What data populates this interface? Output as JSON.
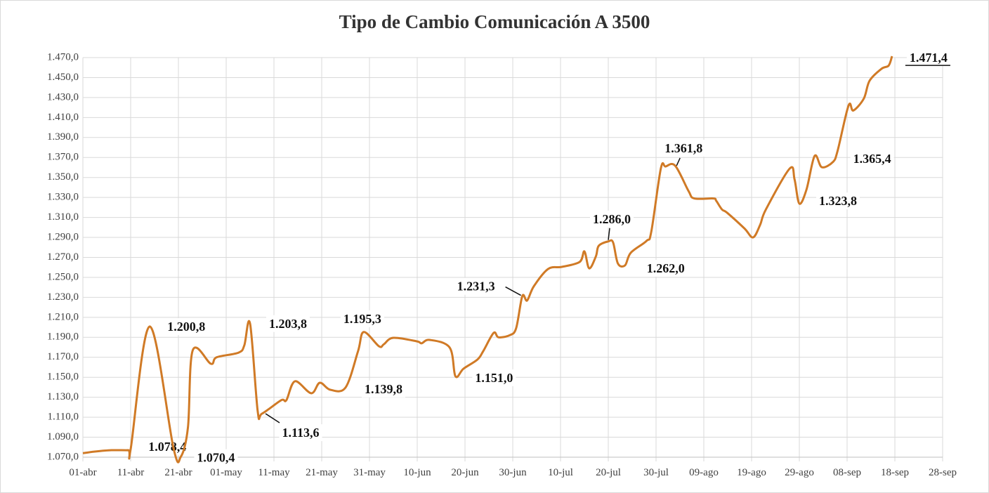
{
  "chart_data": {
    "type": "line",
    "title": "Tipo de Cambio Comunicación A 3500",
    "xlim": [
      0,
      180
    ],
    "xticks": [
      {
        "value": 0,
        "label": "01-abr"
      },
      {
        "value": 10,
        "label": "11-abr"
      },
      {
        "value": 20,
        "label": "21-abr"
      },
      {
        "value": 30,
        "label": "01-may"
      },
      {
        "value": 40,
        "label": "11-may"
      },
      {
        "value": 50,
        "label": "21-may"
      },
      {
        "value": 60,
        "label": "31-may"
      },
      {
        "value": 70,
        "label": "10-jun"
      },
      {
        "value": 80,
        "label": "20-jun"
      },
      {
        "value": 90,
        "label": "30-jun"
      },
      {
        "value": 100,
        "label": "10-jul"
      },
      {
        "value": 110,
        "label": "20-jul"
      },
      {
        "value": 120,
        "label": "30-jul"
      },
      {
        "value": 130,
        "label": "09-ago"
      },
      {
        "value": 140,
        "label": "19-ago"
      },
      {
        "value": 150,
        "label": "29-ago"
      },
      {
        "value": 160,
        "label": "08-sep"
      },
      {
        "value": 170,
        "label": "18-sep"
      },
      {
        "value": 180,
        "label": "28-sep"
      }
    ],
    "ylim": [
      1070,
      1470
    ],
    "yticks": [
      {
        "value": 1070,
        "label": "1.070,0"
      },
      {
        "value": 1090,
        "label": "1.090,0"
      },
      {
        "value": 1110,
        "label": "1.110,0"
      },
      {
        "value": 1130,
        "label": "1.130,0"
      },
      {
        "value": 1150,
        "label": "1.150,0"
      },
      {
        "value": 1170,
        "label": "1.170,0"
      },
      {
        "value": 1190,
        "label": "1.190,0"
      },
      {
        "value": 1210,
        "label": "1.210,0"
      },
      {
        "value": 1230,
        "label": "1.230,0"
      },
      {
        "value": 1250,
        "label": "1.250,0"
      },
      {
        "value": 1270,
        "label": "1.270,0"
      },
      {
        "value": 1290,
        "label": "1.290,0"
      },
      {
        "value": 1310,
        "label": "1.310,0"
      },
      {
        "value": 1330,
        "label": "1.330,0"
      },
      {
        "value": 1350,
        "label": "1.350,0"
      },
      {
        "value": 1370,
        "label": "1.370,0"
      },
      {
        "value": 1390,
        "label": "1.390,0"
      },
      {
        "value": 1410,
        "label": "1.410,0"
      },
      {
        "value": 1430,
        "label": "1.430,0"
      },
      {
        "value": 1450,
        "label": "1.450,0"
      },
      {
        "value": 1470,
        "label": "1.470,0"
      }
    ],
    "grid": true,
    "series": [
      {
        "color": "#d07a26",
        "x": [
          0,
          2.5,
          6,
          9.5,
          10,
          14,
          19,
          20.5,
          22,
          23,
          26.8,
          28,
          32.6,
          33.8,
          35,
          36.6,
          37.5,
          41.5,
          42.6,
          44.4,
          47.8,
          49.6,
          51.8,
          55,
          57.6,
          58.8,
          62,
          63,
          65,
          69.9,
          70.9,
          72.6,
          76.8,
          78,
          79.7,
          82.6,
          83.8,
          86,
          87,
          89.3,
          90.7,
          92,
          93,
          94.4,
          97.4,
          100.3,
          104,
          105,
          106,
          107.4,
          108,
          110,
          111,
          112,
          113.5,
          114.7,
          118,
          119,
          121,
          122,
          124,
          126.8,
          128,
          132,
          132.6,
          133.8,
          134.9,
          138.5,
          140.3,
          141.8,
          143,
          148,
          149,
          150,
          151.5,
          153.2,
          154.7,
          157,
          158,
          160.3,
          161.3,
          163.5,
          164.7,
          167.2,
          168.7,
          169.4
        ],
        "values": [
          1074,
          1075.6,
          1077,
          1077,
          1078,
          1200.8,
          1078.4,
          1070.4,
          1100,
          1177,
          1163.5,
          1170,
          1174.7,
          1182,
          1203.8,
          1116,
          1113.6,
          1127,
          1127,
          1146,
          1134,
          1144.5,
          1137.5,
          1139.8,
          1176,
          1195.3,
          1181,
          1183,
          1189.5,
          1186,
          1184,
          1187.4,
          1179.7,
          1151,
          1158.6,
          1167.7,
          1176,
          1194.4,
          1190,
          1192,
          1199,
          1231.3,
          1226.8,
          1241,
          1258.4,
          1260.5,
          1265.4,
          1276,
          1259,
          1271,
          1281.6,
          1286,
          1285,
          1264,
          1262,
          1274.6,
          1286.5,
          1295.7,
          1359,
          1361,
          1361.8,
          1336.4,
          1329,
          1329,
          1326.6,
          1318,
          1314.6,
          1299,
          1290,
          1302.7,
          1318,
          1359,
          1348,
          1323.8,
          1338,
          1371.6,
          1360.3,
          1365.4,
          1376.5,
          1422,
          1417,
          1429,
          1446.8,
          1458.8,
          1462,
          1471.4
        ]
      }
    ],
    "annotations": [
      {
        "x": 14,
        "value": 1200.8,
        "label": "1.200,8"
      },
      {
        "x": 19,
        "value": 1078.4,
        "label": "1.078,4"
      },
      {
        "x": 20.5,
        "value": 1070.4,
        "label": "1.070,4"
      },
      {
        "x": 35,
        "value": 1203.8,
        "label": "1.203,8"
      },
      {
        "x": 37.5,
        "value": 1113.6,
        "label": "1.113,6"
      },
      {
        "x": 58.8,
        "value": 1195.3,
        "label": "1.195,3"
      },
      {
        "x": 55,
        "value": 1139.8,
        "label": "1.139,8"
      },
      {
        "x": 78,
        "value": 1151.0,
        "label": "1.151,0"
      },
      {
        "x": 92,
        "value": 1231.3,
        "label": "1.231,3"
      },
      {
        "x": 110,
        "value": 1286.0,
        "label": "1.286,0"
      },
      {
        "x": 113.5,
        "value": 1262.0,
        "label": "1.262,0"
      },
      {
        "x": 124,
        "value": 1361.8,
        "label": "1.361,8"
      },
      {
        "x": 150,
        "value": 1323.8,
        "label": "1.323,8"
      },
      {
        "x": 157,
        "value": 1365.4,
        "label": "1.365,4",
        "color": "#4a8f6e"
      },
      {
        "x": 169.4,
        "value": 1471.4,
        "label": "1.471,4"
      }
    ]
  }
}
